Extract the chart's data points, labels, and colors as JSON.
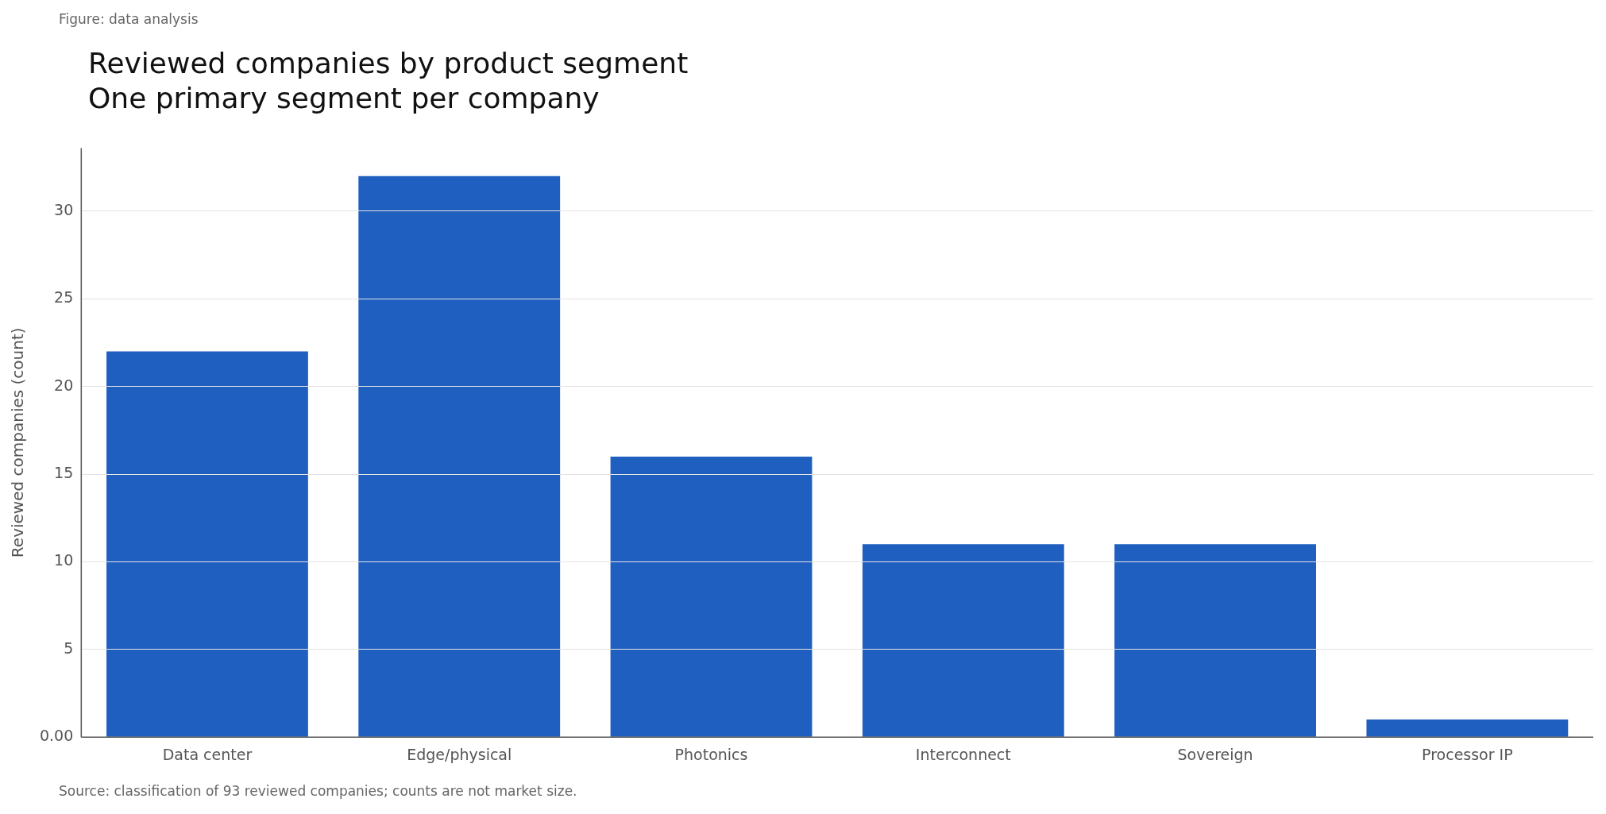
{
  "chart_data": {
    "type": "bar",
    "title": "Reviewed companies by product segment",
    "subtitle": "One primary segment per company",
    "ylabel": "Reviewed companies (count)",
    "categories": [
      "Data center",
      "Edge/physical",
      "Photonics",
      "Interconnect",
      "Sovereign",
      "Processor IP"
    ],
    "values": [
      22,
      32,
      16,
      11,
      11,
      1
    ],
    "color": "#1f5fbf",
    "ylim": [
      0,
      33.6
    ],
    "yticks": [
      {
        "value": 0,
        "label": "0.00"
      },
      5,
      10,
      15,
      20,
      25,
      30
    ],
    "grid": "y",
    "annotations": [
      "Figure: data analysis",
      "Source: classification of 93 reviewed companies; counts are not market size."
    ]
  }
}
